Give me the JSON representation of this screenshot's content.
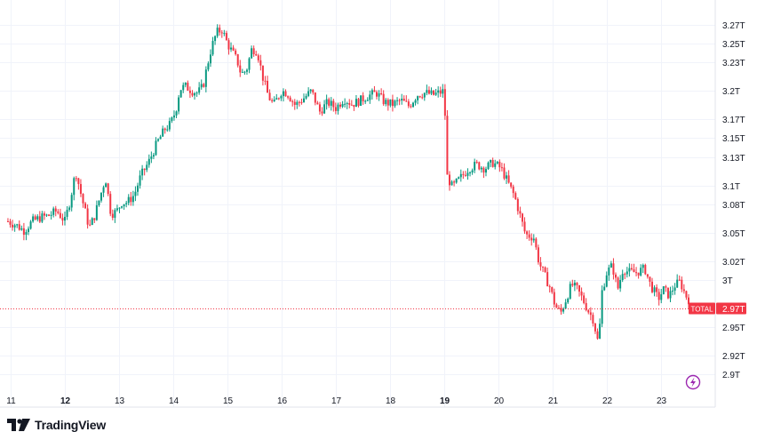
{
  "colors": {
    "up": "#089981",
    "down": "#f23645",
    "grid": "#f0f3fa",
    "axis_text": "#131722",
    "price_line": "#f23645",
    "lightning": "#9c27b0"
  },
  "brand": {
    "name": "TradingView",
    "icon": "tradingview-logo-icon"
  },
  "lightning_icon": "lightning-bolt-icon",
  "chart_data": {
    "type": "candlestick",
    "title": "",
    "ylim": [
      2.89,
      3.285
    ],
    "y_unit": "T",
    "y_ticks": [
      {
        "label": "3.27T",
        "value": 3.27
      },
      {
        "label": "3.25T",
        "value": 3.25
      },
      {
        "label": "3.23T",
        "value": 3.23
      },
      {
        "label": "3.2T",
        "value": 3.2
      },
      {
        "label": "3.17T",
        "value": 3.17
      },
      {
        "label": "3.15T",
        "value": 3.15
      },
      {
        "label": "3.13T",
        "value": 3.13
      },
      {
        "label": "3.1T",
        "value": 3.1
      },
      {
        "label": "3.08T",
        "value": 3.08
      },
      {
        "label": "3.05T",
        "value": 3.05
      },
      {
        "label": "3.02T",
        "value": 3.02
      },
      {
        "label": "3T",
        "value": 3.0
      },
      {
        "label": "2.95T",
        "value": 2.95
      },
      {
        "label": "2.92T",
        "value": 2.92
      },
      {
        "label": "2.9T",
        "value": 2.9
      }
    ],
    "x_range": [
      10.95,
      23.75
    ],
    "x_ticks": [
      {
        "label": "11",
        "value": 11,
        "bold": false
      },
      {
        "label": "12",
        "value": 12,
        "bold": true
      },
      {
        "label": "13",
        "value": 13,
        "bold": false
      },
      {
        "label": "14",
        "value": 14,
        "bold": false
      },
      {
        "label": "15",
        "value": 15,
        "bold": false
      },
      {
        "label": "16",
        "value": 16,
        "bold": false
      },
      {
        "label": "17",
        "value": 17,
        "bold": false
      },
      {
        "label": "18",
        "value": 18,
        "bold": false
      },
      {
        "label": "19",
        "value": 19,
        "bold": true
      },
      {
        "label": "20",
        "value": 20,
        "bold": false
      },
      {
        "label": "21",
        "value": 21,
        "bold": false
      },
      {
        "label": "22",
        "value": 22,
        "bold": false
      },
      {
        "label": "23",
        "value": 23,
        "bold": false
      }
    ],
    "current_price": {
      "tag": "TOTAL",
      "label": "2.97T",
      "value": 2.97
    },
    "series_close": [
      [
        10.95,
        3.062
      ],
      [
        11.1,
        3.058
      ],
      [
        11.25,
        3.052
      ],
      [
        11.4,
        3.062
      ],
      [
        11.55,
        3.066
      ],
      [
        11.7,
        3.068
      ],
      [
        11.85,
        3.073
      ],
      [
        12.0,
        3.062
      ],
      [
        12.1,
        3.085
      ],
      [
        12.2,
        3.115
      ],
      [
        12.32,
        3.085
      ],
      [
        12.45,
        3.055
      ],
      [
        12.55,
        3.068
      ],
      [
        12.65,
        3.088
      ],
      [
        12.75,
        3.108
      ],
      [
        12.85,
        3.07
      ],
      [
        12.95,
        3.072
      ],
      [
        13.05,
        3.082
      ],
      [
        13.15,
        3.082
      ],
      [
        13.28,
        3.09
      ],
      [
        13.4,
        3.11
      ],
      [
        13.55,
        3.125
      ],
      [
        13.7,
        3.145
      ],
      [
        13.85,
        3.16
      ],
      [
        13.95,
        3.165
      ],
      [
        14.05,
        3.18
      ],
      [
        14.12,
        3.202
      ],
      [
        14.22,
        3.205
      ],
      [
        14.35,
        3.2
      ],
      [
        14.45,
        3.198
      ],
      [
        14.55,
        3.205
      ],
      [
        14.62,
        3.225
      ],
      [
        14.7,
        3.245
      ],
      [
        14.8,
        3.262
      ],
      [
        14.9,
        3.265
      ],
      [
        15.0,
        3.25
      ],
      [
        15.1,
        3.24
      ],
      [
        15.18,
        3.232
      ],
      [
        15.25,
        3.218
      ],
      [
        15.35,
        3.222
      ],
      [
        15.45,
        3.245
      ],
      [
        15.55,
        3.242
      ],
      [
        15.65,
        3.215
      ],
      [
        15.75,
        3.195
      ],
      [
        15.85,
        3.185
      ],
      [
        16.0,
        3.2
      ],
      [
        16.1,
        3.198
      ],
      [
        16.25,
        3.185
      ],
      [
        16.4,
        3.192
      ],
      [
        16.55,
        3.2
      ],
      [
        16.7,
        3.178
      ],
      [
        16.85,
        3.188
      ],
      [
        17.0,
        3.182
      ],
      [
        17.15,
        3.192
      ],
      [
        17.3,
        3.186
      ],
      [
        17.45,
        3.19
      ],
      [
        17.6,
        3.195
      ],
      [
        17.75,
        3.198
      ],
      [
        17.9,
        3.188
      ],
      [
        18.05,
        3.186
      ],
      [
        18.2,
        3.19
      ],
      [
        18.35,
        3.184
      ],
      [
        18.5,
        3.196
      ],
      [
        18.65,
        3.198
      ],
      [
        18.8,
        3.196
      ],
      [
        19.0,
        3.2
      ],
      [
        19.05,
        3.11
      ],
      [
        19.15,
        3.098
      ],
      [
        19.3,
        3.108
      ],
      [
        19.45,
        3.118
      ],
      [
        19.6,
        3.122
      ],
      [
        19.75,
        3.118
      ],
      [
        19.9,
        3.124
      ],
      [
        20.05,
        3.118
      ],
      [
        20.2,
        3.1
      ],
      [
        20.3,
        3.088
      ],
      [
        20.4,
        3.068
      ],
      [
        20.5,
        3.048
      ],
      [
        20.65,
        3.045
      ],
      [
        20.75,
        3.018
      ],
      [
        20.85,
        3.005
      ],
      [
        20.95,
        2.992
      ],
      [
        21.05,
        2.972
      ],
      [
        21.15,
        2.965
      ],
      [
        21.25,
        2.98
      ],
      [
        21.35,
        2.995
      ],
      [
        21.45,
        2.99
      ],
      [
        21.55,
        2.98
      ],
      [
        21.65,
        2.968
      ],
      [
        21.75,
        2.958
      ],
      [
        21.85,
        2.93
      ],
      [
        21.9,
        2.985
      ],
      [
        22.0,
        3.008
      ],
      [
        22.1,
        3.015
      ],
      [
        22.2,
        2.99
      ],
      [
        22.3,
        3.012
      ],
      [
        22.4,
        3.008
      ],
      [
        22.55,
        3.008
      ],
      [
        22.7,
        3.012
      ],
      [
        22.8,
        2.995
      ],
      [
        22.95,
        2.98
      ],
      [
        23.05,
        2.99
      ],
      [
        23.15,
        2.983
      ],
      [
        23.25,
        2.994
      ],
      [
        23.35,
        2.998
      ],
      [
        23.45,
        2.984
      ],
      [
        23.52,
        2.978
      ]
    ]
  }
}
